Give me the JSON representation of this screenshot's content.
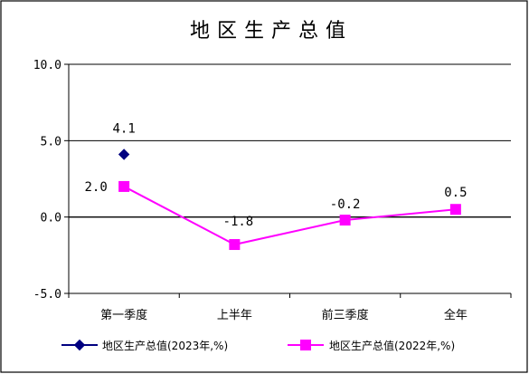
{
  "chart_data": {
    "type": "line",
    "title": "地区生产总值",
    "categories": [
      "第一季度",
      "上半年",
      "前三季度",
      "全年"
    ],
    "ylim": [
      -5.0,
      10.0
    ],
    "yticks": [
      "10.0",
      "5.0",
      "0.0",
      "-5.0"
    ],
    "ytick_values": [
      10,
      5,
      0,
      -5
    ],
    "grid": true,
    "legend_position": "bottom",
    "series": [
      {
        "name": "地区生产总值(2023年,%)",
        "values": [
          4.1,
          null,
          null,
          null
        ],
        "labels": [
          "4.1",
          "",
          "",
          ""
        ],
        "color": "#000080",
        "marker": "diamond"
      },
      {
        "name": "地区生产总值(2022年,%)",
        "values": [
          2.0,
          -1.8,
          -0.2,
          0.5
        ],
        "labels": [
          "2.0",
          "-1.8",
          "-0.2",
          "0.5"
        ],
        "color": "#FF00FF",
        "marker": "square"
      }
    ]
  }
}
